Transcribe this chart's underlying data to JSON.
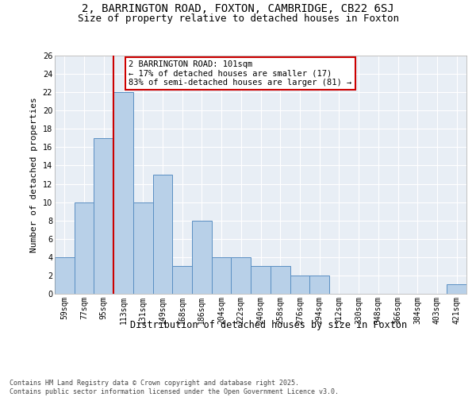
{
  "title1": "2, BARRINGTON ROAD, FOXTON, CAMBRIDGE, CB22 6SJ",
  "title2": "Size of property relative to detached houses in Foxton",
  "xlabel": "Distribution of detached houses by size in Foxton",
  "ylabel": "Number of detached properties",
  "categories": [
    "59sqm",
    "77sqm",
    "95sqm",
    "113sqm",
    "131sqm",
    "149sqm",
    "168sqm",
    "186sqm",
    "204sqm",
    "222sqm",
    "240sqm",
    "258sqm",
    "276sqm",
    "294sqm",
    "312sqm",
    "330sqm",
    "348sqm",
    "366sqm",
    "384sqm",
    "403sqm",
    "421sqm"
  ],
  "values": [
    4,
    10,
    17,
    22,
    10,
    13,
    3,
    8,
    4,
    4,
    3,
    3,
    2,
    2,
    0,
    0,
    0,
    0,
    0,
    0,
    1
  ],
  "bar_color": "#b8d0e8",
  "bar_edgecolor": "#5a8fc3",
  "bar_linewidth": 0.7,
  "redline_index": 2,
  "redline_color": "#cc0000",
  "annotation_line1": "2 BARRINGTON ROAD: 101sqm",
  "annotation_line2": "← 17% of detached houses are smaller (17)",
  "annotation_line3": "83% of semi-detached houses are larger (81) →",
  "ylim": [
    0,
    26
  ],
  "yticks": [
    0,
    2,
    4,
    6,
    8,
    10,
    12,
    14,
    16,
    18,
    20,
    22,
    24,
    26
  ],
  "background_color": "#e8eef5",
  "grid_color": "#ffffff",
  "footer": "Contains HM Land Registry data © Crown copyright and database right 2025.\nContains public sector information licensed under the Open Government Licence v3.0.",
  "title1_fontsize": 10,
  "title2_fontsize": 9,
  "xlabel_fontsize": 8.5,
  "ylabel_fontsize": 8,
  "tick_fontsize": 7,
  "annotation_fontsize": 7.5,
  "footer_fontsize": 6
}
